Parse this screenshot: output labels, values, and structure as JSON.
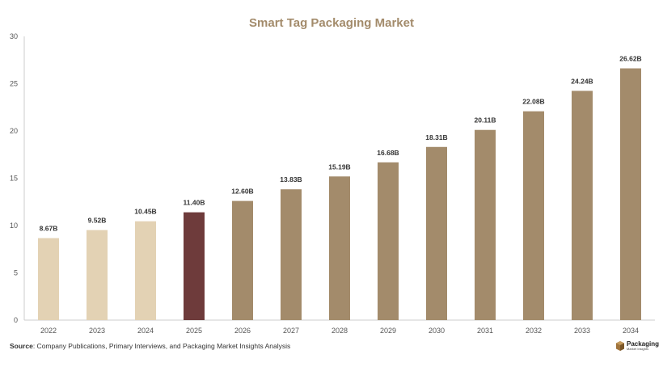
{
  "chart_data": {
    "type": "bar",
    "title": "Smart Tag Packaging Market",
    "xlabel": "",
    "ylabel": "",
    "ylim": [
      0,
      30
    ],
    "yticks": [
      0,
      5,
      10,
      15,
      20,
      25,
      30
    ],
    "categories": [
      "2022",
      "2023",
      "2024",
      "2025",
      "2026",
      "2027",
      "2028",
      "2029",
      "2030",
      "2031",
      "2032",
      "2033",
      "2034"
    ],
    "values": [
      8.67,
      9.52,
      10.45,
      11.4,
      12.6,
      13.83,
      15.19,
      16.68,
      18.31,
      20.11,
      22.08,
      24.24,
      26.62
    ],
    "data_labels": [
      "8.67B",
      "9.52B",
      "10.45B",
      "11.40B",
      "12.60B",
      "13.83B",
      "15.19B",
      "16.68B",
      "18.31B",
      "20.11B",
      "22.08B",
      "24.24B",
      "26.62B"
    ],
    "bar_colors": [
      "#e3d2b4",
      "#e3d2b4",
      "#e3d2b4",
      "#6e3b3b",
      "#a38b6b",
      "#a38b6b",
      "#a38b6b",
      "#a38b6b",
      "#a38b6b",
      "#a38b6b",
      "#a38b6b",
      "#a38b6b",
      "#a38b6b"
    ],
    "grid": false,
    "legend": "none"
  },
  "footer": {
    "source_prefix": "Source",
    "source_text": ": Company Publications, Primary Interviews, and Packaging Market Insights Analysis"
  },
  "logo": {
    "name": "Packaging",
    "sub": "Market Insights"
  },
  "colors": {
    "title": "#a38b6b",
    "axis": "#cccccc",
    "logo_mark": "#a0743c"
  }
}
